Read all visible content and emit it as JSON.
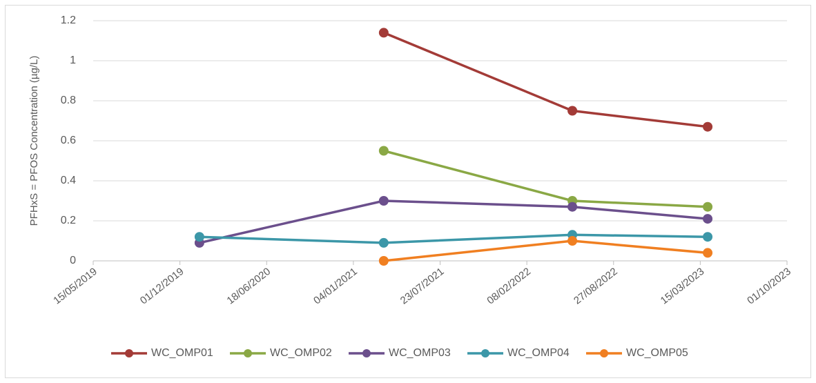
{
  "chart_data": {
    "type": "line",
    "y_label": "PFHxS = PFOS Concentration (µg/L)",
    "x": [
      "15/01/2020",
      "15/03/2021",
      "24/05/2022",
      "01/04/2023"
    ],
    "series": [
      {
        "name": "WC_OMP01",
        "color": "#a33b37",
        "values": [
          null,
          1.14,
          0.75,
          0.67
        ]
      },
      {
        "name": "WC_OMP02",
        "color": "#8aa845",
        "values": [
          null,
          0.55,
          0.3,
          0.27
        ]
      },
      {
        "name": "WC_OMP03",
        "color": "#6b4f8c",
        "values": [
          0.09,
          0.3,
          0.27,
          0.21
        ]
      },
      {
        "name": "WC_OMP04",
        "color": "#3c97a8",
        "values": [
          0.12,
          0.09,
          0.13,
          0.12
        ]
      },
      {
        "name": "WC_OMP05",
        "color": "#f07f21",
        "values": [
          null,
          0.0,
          0.1,
          0.04
        ]
      }
    ],
    "xlim": [
      "15/05/2019",
      "01/10/2023"
    ],
    "xticks": [
      "15/05/2019",
      "01/12/2019",
      "18/06/2020",
      "04/01/2021",
      "23/07/2021",
      "08/02/2022",
      "27/08/2022",
      "15/03/2023",
      "01/10/2023"
    ],
    "ylim": [
      0,
      1.2
    ],
    "yticks": [
      0,
      0.2,
      0.4,
      0.6,
      0.8,
      1,
      1.2
    ],
    "grid": true,
    "legend": "bottom"
  }
}
